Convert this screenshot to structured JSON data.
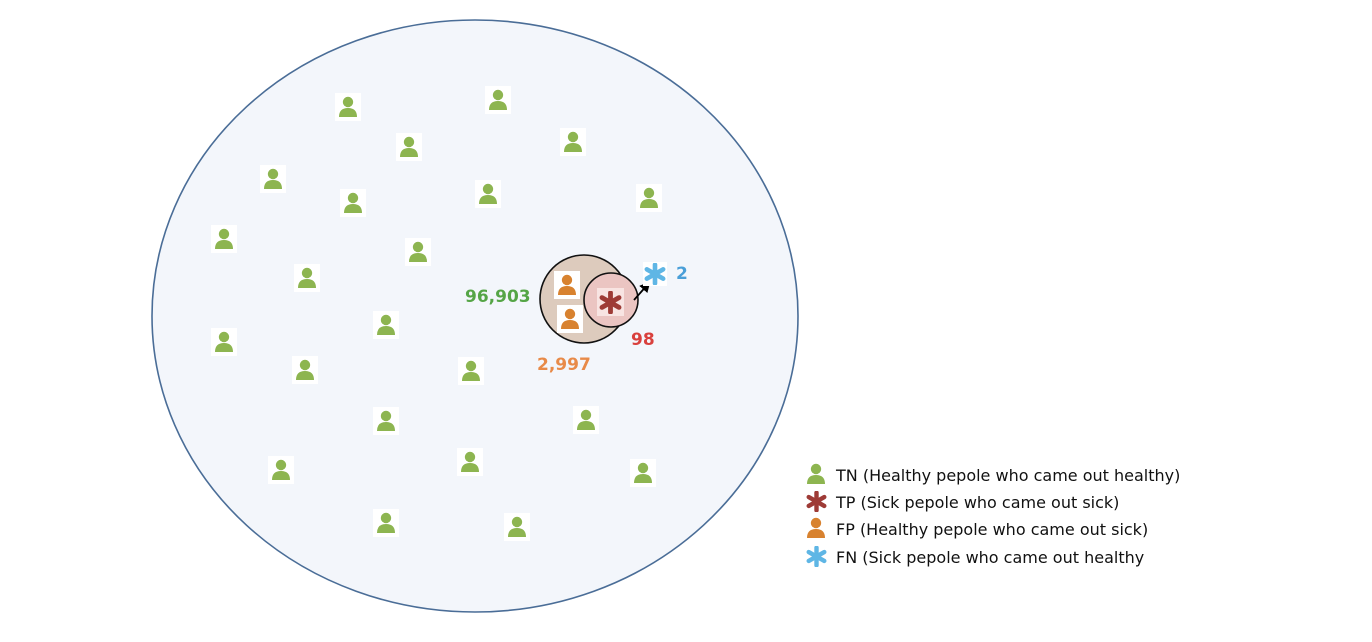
{
  "colors": {
    "tn": "#8db550",
    "tp": "#9e3b36",
    "fp": "#d8822f",
    "fn": "#5fb6e5",
    "population_fill": "#f3f6fb",
    "population_stroke": "#4a6d97",
    "positive_fill": "#ddcbbd",
    "tp_fill": "#ebc5c2"
  },
  "counts": {
    "tn": "96,903",
    "fp": "2,997",
    "tp": "98",
    "fn": "2"
  },
  "legend": [
    {
      "key": "tn",
      "icon": "person-icon",
      "label": "TN (Healthy pepole who came out healthy)"
    },
    {
      "key": "tp",
      "icon": "asterisk-icon",
      "label": "TP (Sick pepole who came out sick)"
    },
    {
      "key": "fp",
      "icon": "person-icon",
      "label": "FP (Healthy pepole who came out sick)"
    },
    {
      "key": "fn",
      "icon": "asterisk-icon",
      "label": "FN (Sick pepole who came out healthy"
    }
  ]
}
